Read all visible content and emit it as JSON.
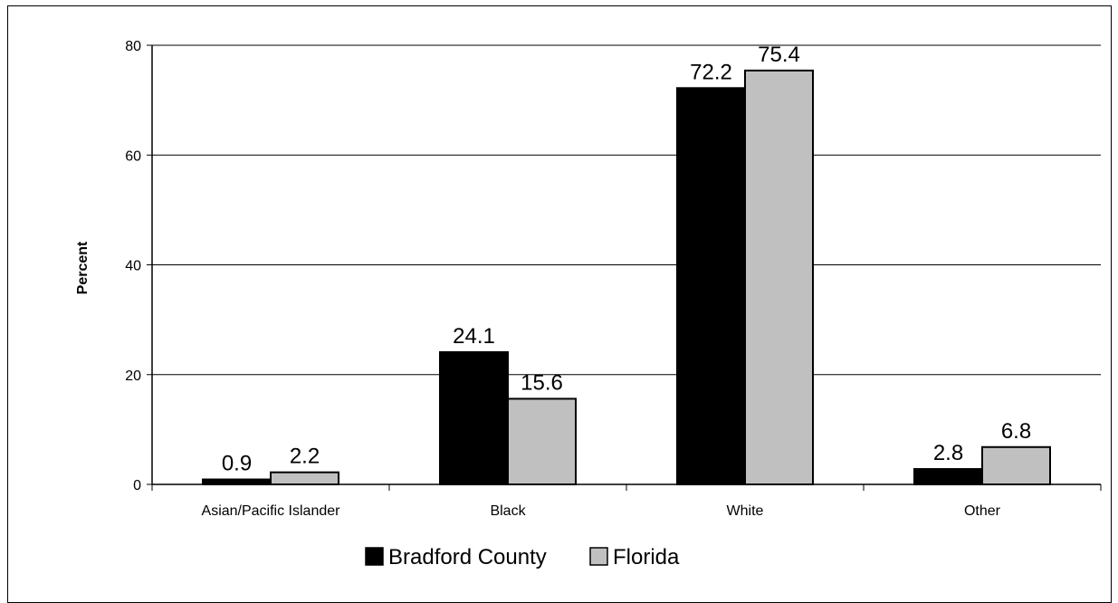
{
  "chart_data": {
    "type": "bar",
    "title": "",
    "xlabel": "",
    "ylabel": "Percent",
    "ylim": [
      0,
      80
    ],
    "yticks": [
      0,
      20,
      40,
      60,
      80
    ],
    "grid": true,
    "legend_position": "bottom",
    "categories": [
      "Asian/Pacific Islander",
      "Black",
      "White",
      "Other"
    ],
    "series": [
      {
        "name": "Bradford County",
        "color": "#000000",
        "values": [
          0.9,
          24.1,
          72.2,
          2.8
        ]
      },
      {
        "name": "Florida",
        "color": "#c0c0c0",
        "values": [
          2.2,
          15.6,
          75.4,
          6.8
        ]
      }
    ]
  }
}
